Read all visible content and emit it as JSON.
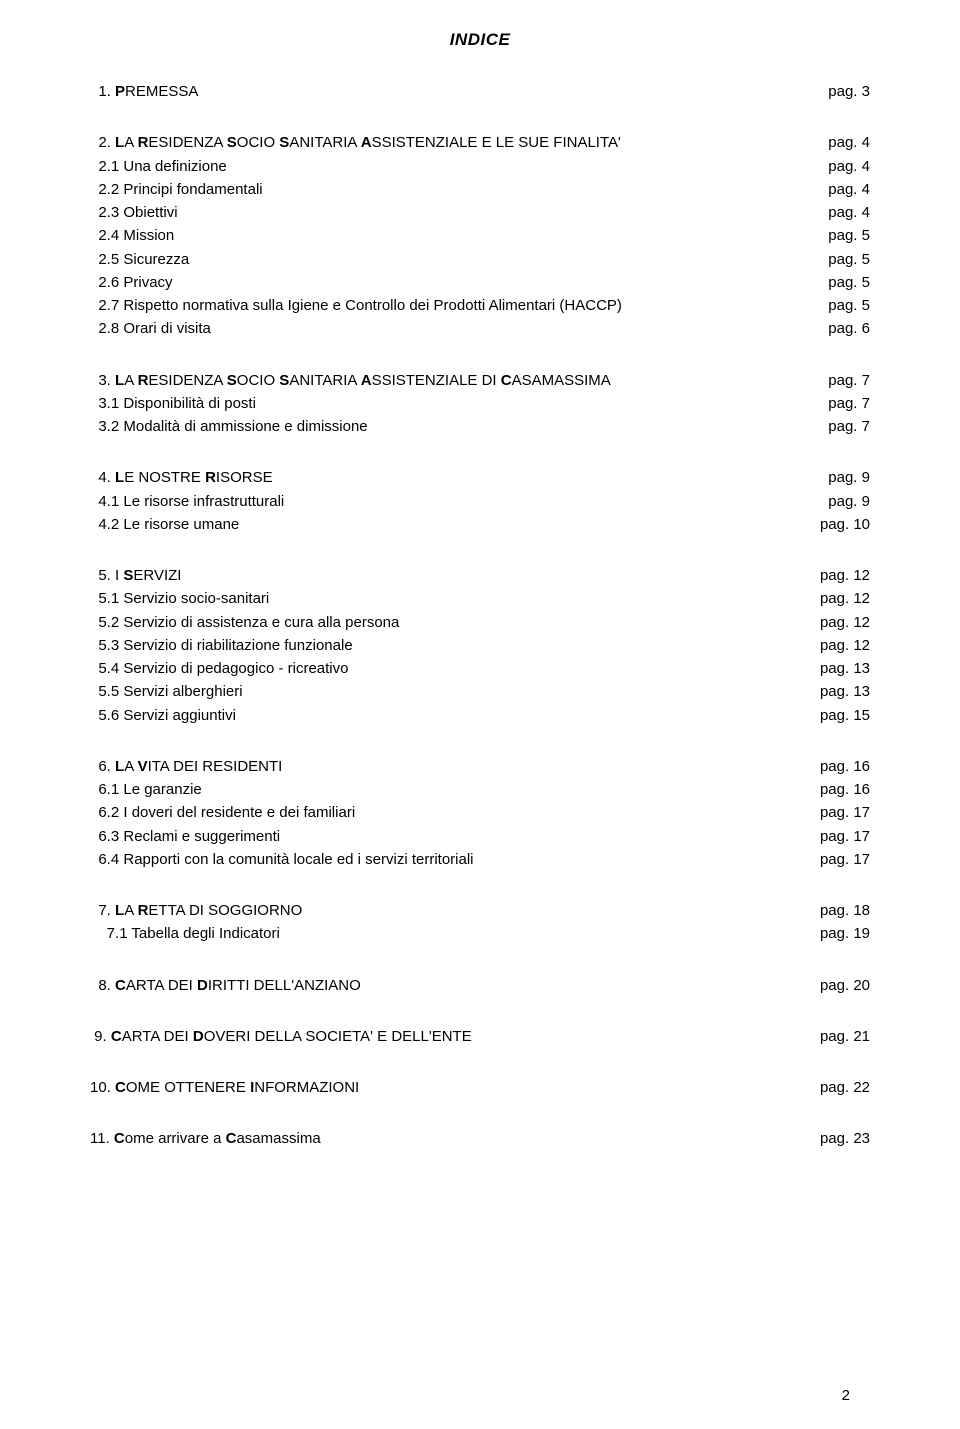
{
  "title": "INDICE",
  "page_label": "pag.",
  "page_number": "2",
  "text_color": "#000000",
  "background_color": "#ffffff",
  "font_family": "Century Gothic, Futura, Avant Garde, sans-serif",
  "title_fontsize": 17,
  "body_fontsize": 15,
  "line_height": 1.55,
  "indent": {
    "none": "",
    "one": " ",
    "two": "  ",
    "top": "  "
  },
  "sections": [
    {
      "rows": [
        {
          "indent_key": "top",
          "parts": [
            {
              "t": "1. ",
              "b": false
            },
            {
              "t": "P",
              "b": true
            },
            {
              "t": "REMESSA",
              "b": false
            }
          ],
          "page": "3",
          "page_pad": 2
        }
      ]
    },
    {
      "rows": [
        {
          "indent_key": "top",
          "parts": [
            {
              "t": "2. ",
              "b": false
            },
            {
              "t": "L",
              "b": true
            },
            {
              "t": "A ",
              "b": false
            },
            {
              "t": "R",
              "b": true
            },
            {
              "t": "ESIDENZA ",
              "b": false
            },
            {
              "t": "S",
              "b": true
            },
            {
              "t": "OCIO ",
              "b": false
            },
            {
              "t": "S",
              "b": true
            },
            {
              "t": "ANITARIA ",
              "b": false
            },
            {
              "t": "A",
              "b": true
            },
            {
              "t": "SSISTENZIALE E LE SUE FINALITA'",
              "b": false
            }
          ],
          "page": "4",
          "page_pad": 2
        },
        {
          "indent_key": "two",
          "parts": [
            {
              "t": "2.1 Una definizione",
              "b": false
            }
          ],
          "page": "4",
          "page_pad": 2
        },
        {
          "indent_key": "two",
          "parts": [
            {
              "t": "2.2 Principi fondamentali",
              "b": false
            }
          ],
          "page": "4",
          "page_pad": 2
        },
        {
          "indent_key": "two",
          "parts": [
            {
              "t": "2.3 Obiettivi",
              "b": false
            }
          ],
          "page": "4",
          "page_pad": 2
        },
        {
          "indent_key": "two",
          "parts": [
            {
              "t": "2.4 Mission",
              "b": false
            }
          ],
          "page": "5",
          "page_pad": 2
        },
        {
          "indent_key": "two",
          "parts": [
            {
              "t": "2.5 Sicurezza",
              "b": false
            }
          ],
          "page": "5",
          "page_pad": 2
        },
        {
          "indent_key": "two",
          "parts": [
            {
              "t": "2.6 Privacy",
              "b": false
            }
          ],
          "page": "5",
          "page_pad": 2
        },
        {
          "indent_key": "two",
          "parts": [
            {
              "t": "2.7 Rispetto normativa sulla Igiene e Controllo dei Prodotti Alimentari (HACCP)",
              "b": false
            }
          ],
          "page": "5",
          "page_pad": 2
        },
        {
          "indent_key": "two",
          "parts": [
            {
              "t": "2.8 Orari di visita",
              "b": false
            }
          ],
          "page": "6",
          "page_pad": 2
        }
      ]
    },
    {
      "rows": [
        {
          "indent_key": "two",
          "parts": [
            {
              "t": "3. ",
              "b": false
            },
            {
              "t": "L",
              "b": true
            },
            {
              "t": "A ",
              "b": false
            },
            {
              "t": "R",
              "b": true
            },
            {
              "t": "ESIDENZA ",
              "b": false
            },
            {
              "t": "S",
              "b": true
            },
            {
              "t": "OCIO ",
              "b": false
            },
            {
              "t": "S",
              "b": true
            },
            {
              "t": "ANITARIA ",
              "b": false
            },
            {
              "t": "A",
              "b": true
            },
            {
              "t": "SSISTENZIALE DI ",
              "b": false
            },
            {
              "t": "C",
              "b": true
            },
            {
              "t": "ASAMASSIMA",
              "b": false
            }
          ],
          "page": "7",
          "page_pad": 2
        },
        {
          "indent_key": "two",
          "parts": [
            {
              "t": "3.1 Disponibilità di posti",
              "b": false
            }
          ],
          "page": "7",
          "page_pad": 2
        },
        {
          "indent_key": "two",
          "parts": [
            {
              "t": "3.2 Modalità di ammissione e dimissione",
              "b": false
            }
          ],
          "page": "7",
          "page_pad": 2
        }
      ]
    },
    {
      "rows": [
        {
          "indent_key": "two",
          "parts": [
            {
              "t": "4. ",
              "b": false
            },
            {
              "t": "L",
              "b": true
            },
            {
              "t": "E NOSTRE ",
              "b": false
            },
            {
              "t": "R",
              "b": true
            },
            {
              "t": "ISORSE",
              "b": false
            }
          ],
          "page": "9",
          "page_pad": 2
        },
        {
          "indent_key": "two",
          "parts": [
            {
              "t": "4.1 Le risorse infrastrutturali",
              "b": false
            }
          ],
          "page": "9",
          "page_pad": 2
        },
        {
          "indent_key": "two",
          "parts": [
            {
              "t": "4.2 Le risorse umane",
              "b": false
            }
          ],
          "page": "10",
          "page_pad": 1
        }
      ]
    },
    {
      "rows": [
        {
          "indent_key": "two",
          "parts": [
            {
              "t": "5. ",
              "b": false
            },
            {
              "t": "I ",
              "b": false
            },
            {
              "t": "S",
              "b": true
            },
            {
              "t": "ERVIZI",
              "b": false
            }
          ],
          "page": "12",
          "page_pad": 1
        },
        {
          "indent_key": "two",
          "parts": [
            {
              "t": "5.1 Servizio socio-sanitari",
              "b": false
            }
          ],
          "page": "12",
          "page_pad": 1
        },
        {
          "indent_key": "two",
          "parts": [
            {
              "t": "5.2 Servizio di assistenza e cura alla persona",
              "b": false
            }
          ],
          "page": "12",
          "page_pad": 1
        },
        {
          "indent_key": "two",
          "parts": [
            {
              "t": "5.3 Servizio di riabilitazione funzionale",
              "b": false
            }
          ],
          "page": "12",
          "page_pad": 1
        },
        {
          "indent_key": "two",
          "parts": [
            {
              "t": "5.4 Servizio di pedagogico - ricreativo",
              "b": false
            }
          ],
          "page": "13",
          "page_pad": 1
        },
        {
          "indent_key": "two",
          "parts": [
            {
              "t": "5.5 Servizi alberghieri",
              "b": false
            }
          ],
          "page": "13",
          "page_pad": 1
        },
        {
          "indent_key": "two",
          "parts": [
            {
              "t": "5.6 Servizi aggiuntivi",
              "b": false
            }
          ],
          "page": "15",
          "page_pad": 1
        }
      ]
    },
    {
      "rows": [
        {
          "indent_key": "two",
          "parts": [
            {
              "t": "6. ",
              "b": false
            },
            {
              "t": "L",
              "b": true
            },
            {
              "t": "A ",
              "b": false
            },
            {
              "t": "V",
              "b": true
            },
            {
              "t": "ITA DEI RESIDENTI",
              "b": false
            }
          ],
          "page": "16",
          "page_pad": 1
        },
        {
          "indent_key": "two",
          "parts": [
            {
              "t": "6.1 Le garanzie",
              "b": false
            }
          ],
          "page": "16",
          "page_pad": 1
        },
        {
          "indent_key": "two",
          "parts": [
            {
              "t": "6.2 I doveri del residente e dei familiari",
              "b": false
            }
          ],
          "page": "17",
          "page_pad": 1
        },
        {
          "indent_key": "two",
          "parts": [
            {
              "t": "6.3 Reclami e suggerimenti",
              "b": false
            }
          ],
          "page": "17",
          "page_pad": 1
        },
        {
          "indent_key": "two",
          "parts": [
            {
              "t": "6.4 Rapporti con la comunità locale ed i servizi territoriali",
              "b": false
            }
          ],
          "page": "17",
          "page_pad": 1
        }
      ]
    },
    {
      "rows": [
        {
          "indent_key": "two",
          "parts": [
            {
              "t": "7. ",
              "b": false
            },
            {
              "t": "L",
              "b": true
            },
            {
              "t": "A ",
              "b": false
            },
            {
              "t": "R",
              "b": true
            },
            {
              "t": "ETTA DI SOGGIORNO",
              "b": false
            }
          ],
          "page": "18",
          "page_pad": 1
        },
        {
          "indent_key": "two",
          "parts": [
            {
              "t": "  7.1 Tabella degli Indicatori",
              "b": false
            }
          ],
          "page": "19",
          "page_pad": 1
        }
      ]
    },
    {
      "rows": [
        {
          "indent_key": "two",
          "parts": [
            {
              "t": "8. ",
              "b": false
            },
            {
              "t": "C",
              "b": true
            },
            {
              "t": "ARTA DEI ",
              "b": false
            },
            {
              "t": "D",
              "b": true
            },
            {
              "t": "IRITTI DELL'ANZIANO",
              "b": false
            }
          ],
          "page": "20",
          "page_pad": 1
        }
      ]
    },
    {
      "rows": [
        {
          "indent_key": "one",
          "parts": [
            {
              "t": "9. ",
              "b": false
            },
            {
              "t": "C",
              "b": true
            },
            {
              "t": "ARTA DEI ",
              "b": false
            },
            {
              "t": "D",
              "b": true
            },
            {
              "t": "OVERI DELLA SOCIETA' E DELL'ENTE",
              "b": false
            }
          ],
          "page": "21",
          "page_pad": 1
        }
      ]
    },
    {
      "rows": [
        {
          "indent_key": "none",
          "parts": [
            {
              "t": "10. ",
              "b": false
            },
            {
              "t": "C",
              "b": true
            },
            {
              "t": "OME OTTENERE ",
              "b": false
            },
            {
              "t": "I",
              "b": true
            },
            {
              "t": "NFORMAZIONI",
              "b": false
            }
          ],
          "page": "22",
          "page_pad": 1
        }
      ]
    },
    {
      "rows": [
        {
          "indent_key": "none",
          "parts": [
            {
              "t": "11. ",
              "b": false
            },
            {
              "t": "C",
              "b": true
            },
            {
              "t": "ome arrivare a ",
              "b": false
            },
            {
              "t": "C",
              "b": true
            },
            {
              "t": "asamassima",
              "b": false
            }
          ],
          "page": "23",
          "page_pad": 1
        }
      ]
    }
  ]
}
